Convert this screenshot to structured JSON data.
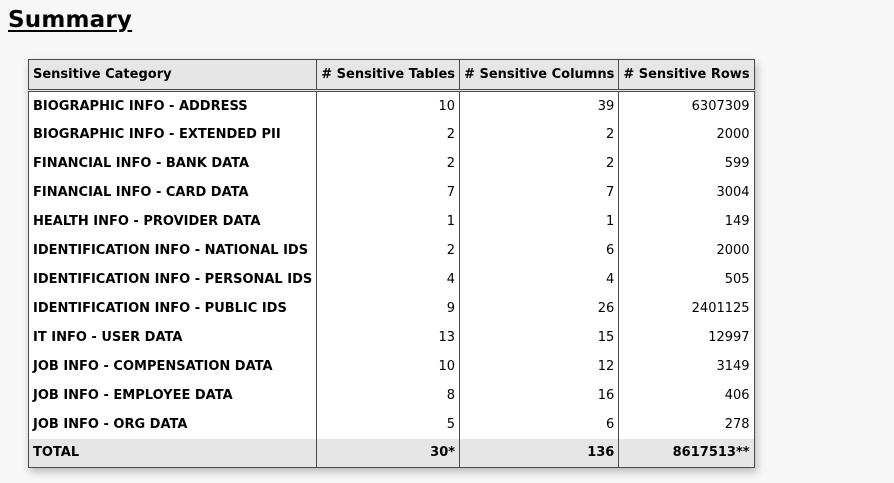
{
  "page": {
    "title": "Summary"
  },
  "table": {
    "headers": [
      "Sensitive Category",
      "# Sensitive Tables",
      "# Sensitive Columns",
      "# Sensitive Rows"
    ],
    "rows": [
      [
        "BIOGRAPHIC INFO - ADDRESS",
        "10",
        "39",
        "6307309"
      ],
      [
        "BIOGRAPHIC INFO - EXTENDED PII",
        "2",
        "2",
        "2000"
      ],
      [
        "FINANCIAL INFO - BANK DATA",
        "2",
        "2",
        "599"
      ],
      [
        "FINANCIAL INFO - CARD DATA",
        "7",
        "7",
        "3004"
      ],
      [
        "HEALTH INFO - PROVIDER DATA",
        "1",
        "1",
        "149"
      ],
      [
        "IDENTIFICATION INFO - NATIONAL IDS",
        "2",
        "6",
        "2000"
      ],
      [
        "IDENTIFICATION INFO - PERSONAL IDS",
        "4",
        "4",
        "505"
      ],
      [
        "IDENTIFICATION INFO - PUBLIC IDS",
        "9",
        "26",
        "2401125"
      ],
      [
        "IT INFO - USER DATA",
        "13",
        "15",
        "12997"
      ],
      [
        "JOB INFO - COMPENSATION DATA",
        "10",
        "12",
        "3149"
      ],
      [
        "JOB INFO - EMPLOYEE DATA",
        "8",
        "16",
        "406"
      ],
      [
        "JOB INFO - ORG DATA",
        "5",
        "6",
        "278"
      ]
    ],
    "total": [
      "TOTAL",
      "30*",
      "136",
      "8617513**"
    ]
  }
}
